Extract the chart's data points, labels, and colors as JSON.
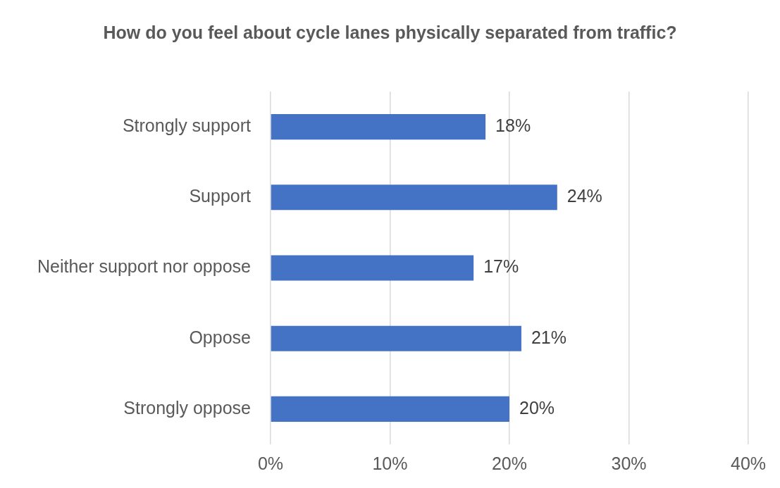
{
  "chart_data": {
    "type": "bar",
    "orientation": "horizontal",
    "title": "How do you feel about cycle lanes physically separated from traffic?",
    "categories": [
      "Strongly support",
      "Support",
      "Neither support nor oppose",
      "Oppose",
      "Strongly oppose"
    ],
    "values": [
      18,
      24,
      17,
      21,
      20
    ],
    "value_labels": [
      "18%",
      "24%",
      "17%",
      "21%",
      "20%"
    ],
    "color": "#4472c4",
    "xlim": [
      0,
      40
    ],
    "xticks": [
      {
        "value": 0,
        "label": "0%"
      },
      {
        "value": 10,
        "label": "10%"
      },
      {
        "value": 20,
        "label": "20%"
      },
      {
        "value": 30,
        "label": "30%"
      },
      {
        "value": 40,
        "label": "40%"
      }
    ],
    "grid": "x"
  }
}
